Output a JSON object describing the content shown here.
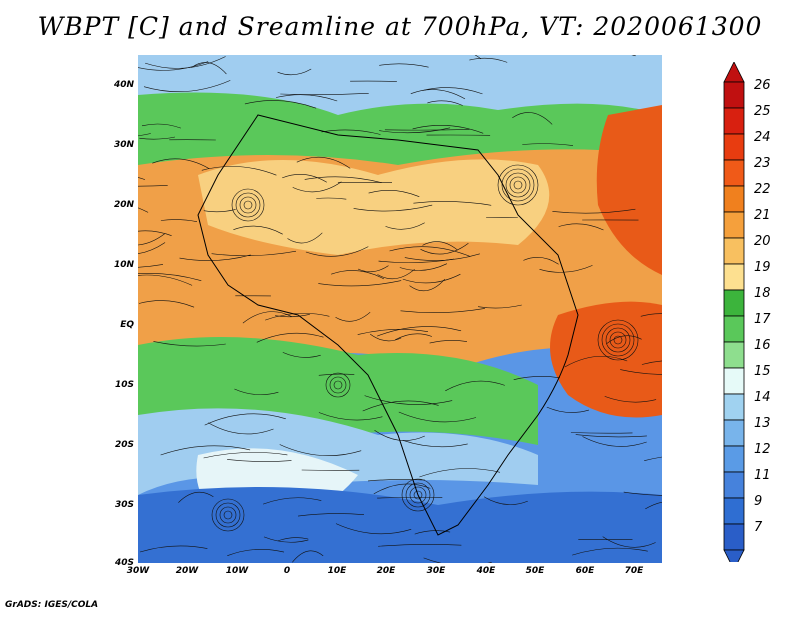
{
  "title": "WBPT [C] and Sreamline at 700hPa, VT: 2020061300",
  "footer": "GrADS: IGES/COLA",
  "y_ticks": [
    "40N",
    "30N",
    "20N",
    "10N",
    "EQ",
    "10S",
    "20S",
    "30S",
    "40S"
  ],
  "x_ticks": [
    "30W",
    "20W",
    "10W",
    "0",
    "10E",
    "20E",
    "30E",
    "40E",
    "50E",
    "60E",
    "70E"
  ],
  "colorbar": {
    "labels": [
      "26",
      "25",
      "24",
      "23",
      "22",
      "21",
      "20",
      "19",
      "18",
      "17",
      "16",
      "15",
      "14",
      "13",
      "12",
      "11",
      "9",
      "7"
    ],
    "colors": [
      "#c01010",
      "#d82010",
      "#e83c10",
      "#f05a18",
      "#f0801e",
      "#f5a03c",
      "#f8c060",
      "#fde090",
      "#3cb43c",
      "#5ac85a",
      "#8ede8e",
      "#e6faf8",
      "#a0d2f0",
      "#78b4eb",
      "#5a9be6",
      "#4682dc",
      "#2f6ed2",
      "#2a5ec8"
    ]
  },
  "field_colors": {
    "hot": "#e85a18",
    "warm": "#f0a048",
    "mild": "#f8d080",
    "green": "#5ac85a",
    "lightgreen": "#9be09b",
    "white": "#e6f5f8",
    "lightblue": "#a0cdf0",
    "blue": "#5a96e6",
    "deepblue": "#3470d2"
  }
}
